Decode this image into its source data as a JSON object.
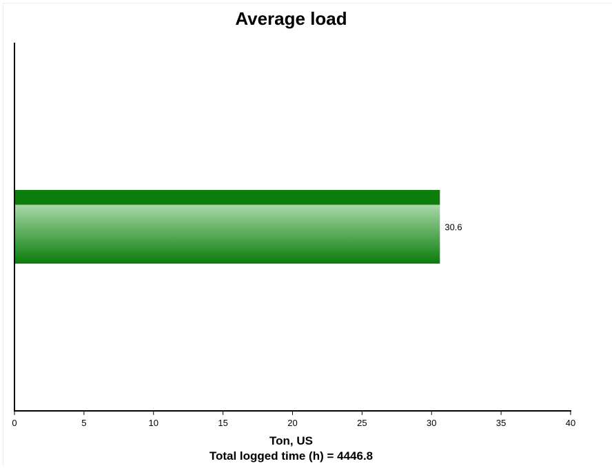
{
  "chart_data": {
    "type": "bar",
    "orientation": "horizontal",
    "title": "Average load",
    "categories": [
      ""
    ],
    "values": [
      30.6
    ],
    "value_labels": [
      "30.6"
    ],
    "xlabel": "Ton, US",
    "ylabel": "",
    "xlim": [
      0,
      40
    ],
    "xticks": [
      "0",
      "5",
      "10",
      "15",
      "20",
      "25",
      "30",
      "35",
      "40"
    ],
    "grid": false,
    "legend": "none",
    "footer": "Total logged time (h) = 4446.8",
    "colors": {
      "bar_dark": "#0a7d0a",
      "bar_light": "#a8d8a8"
    }
  }
}
